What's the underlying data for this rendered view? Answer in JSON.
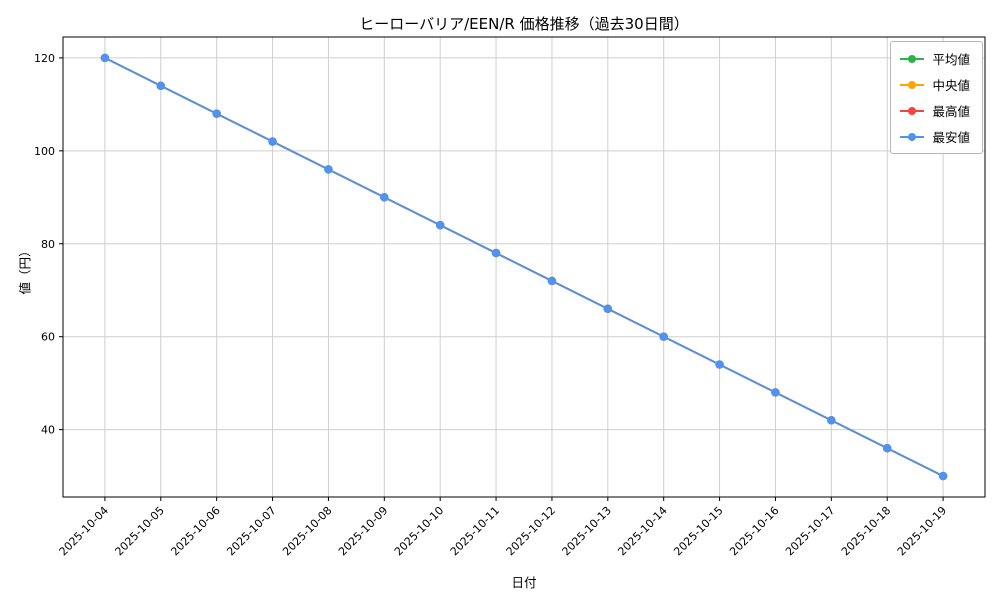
{
  "chart_data": {
    "type": "line",
    "title": "ヒーローバリア/EEN/R 価格推移（過去30日間）",
    "xlabel": "日付",
    "ylabel": "値（円）",
    "x": [
      "2025-10-04",
      "2025-10-05",
      "2025-10-06",
      "2025-10-07",
      "2025-10-08",
      "2025-10-09",
      "2025-10-10",
      "2025-10-11",
      "2025-10-12",
      "2025-10-13",
      "2025-10-14",
      "2025-10-15",
      "2025-10-16",
      "2025-10-17",
      "2025-10-18",
      "2025-10-19"
    ],
    "series": [
      {
        "name": "平均値",
        "color": "#2bb24c",
        "values": [
          120,
          114,
          108,
          102,
          96,
          90,
          84,
          78,
          72,
          66,
          60,
          54,
          48,
          42,
          36,
          30
        ]
      },
      {
        "name": "中央値",
        "color": "#ffa500",
        "values": [
          120,
          114,
          108,
          102,
          96,
          90,
          84,
          78,
          72,
          66,
          60,
          54,
          48,
          42,
          36,
          30
        ]
      },
      {
        "name": "最高値",
        "color": "#f2453d",
        "values": [
          120,
          114,
          108,
          102,
          96,
          90,
          84,
          78,
          72,
          66,
          60,
          54,
          48,
          42,
          36,
          30
        ]
      },
      {
        "name": "最安値",
        "color": "#4d94f0",
        "values": [
          120,
          114,
          108,
          102,
          96,
          90,
          84,
          78,
          72,
          66,
          60,
          54,
          48,
          42,
          36,
          30
        ]
      }
    ],
    "yticks": [
      40,
      60,
      80,
      100,
      120
    ],
    "ylim": [
      25.5,
      124.5
    ],
    "grid": true,
    "grid_color": "#cfcfcf",
    "legend_position": "upper right",
    "note": "all four series coincide; 最安値 (blue) drawn on top"
  }
}
